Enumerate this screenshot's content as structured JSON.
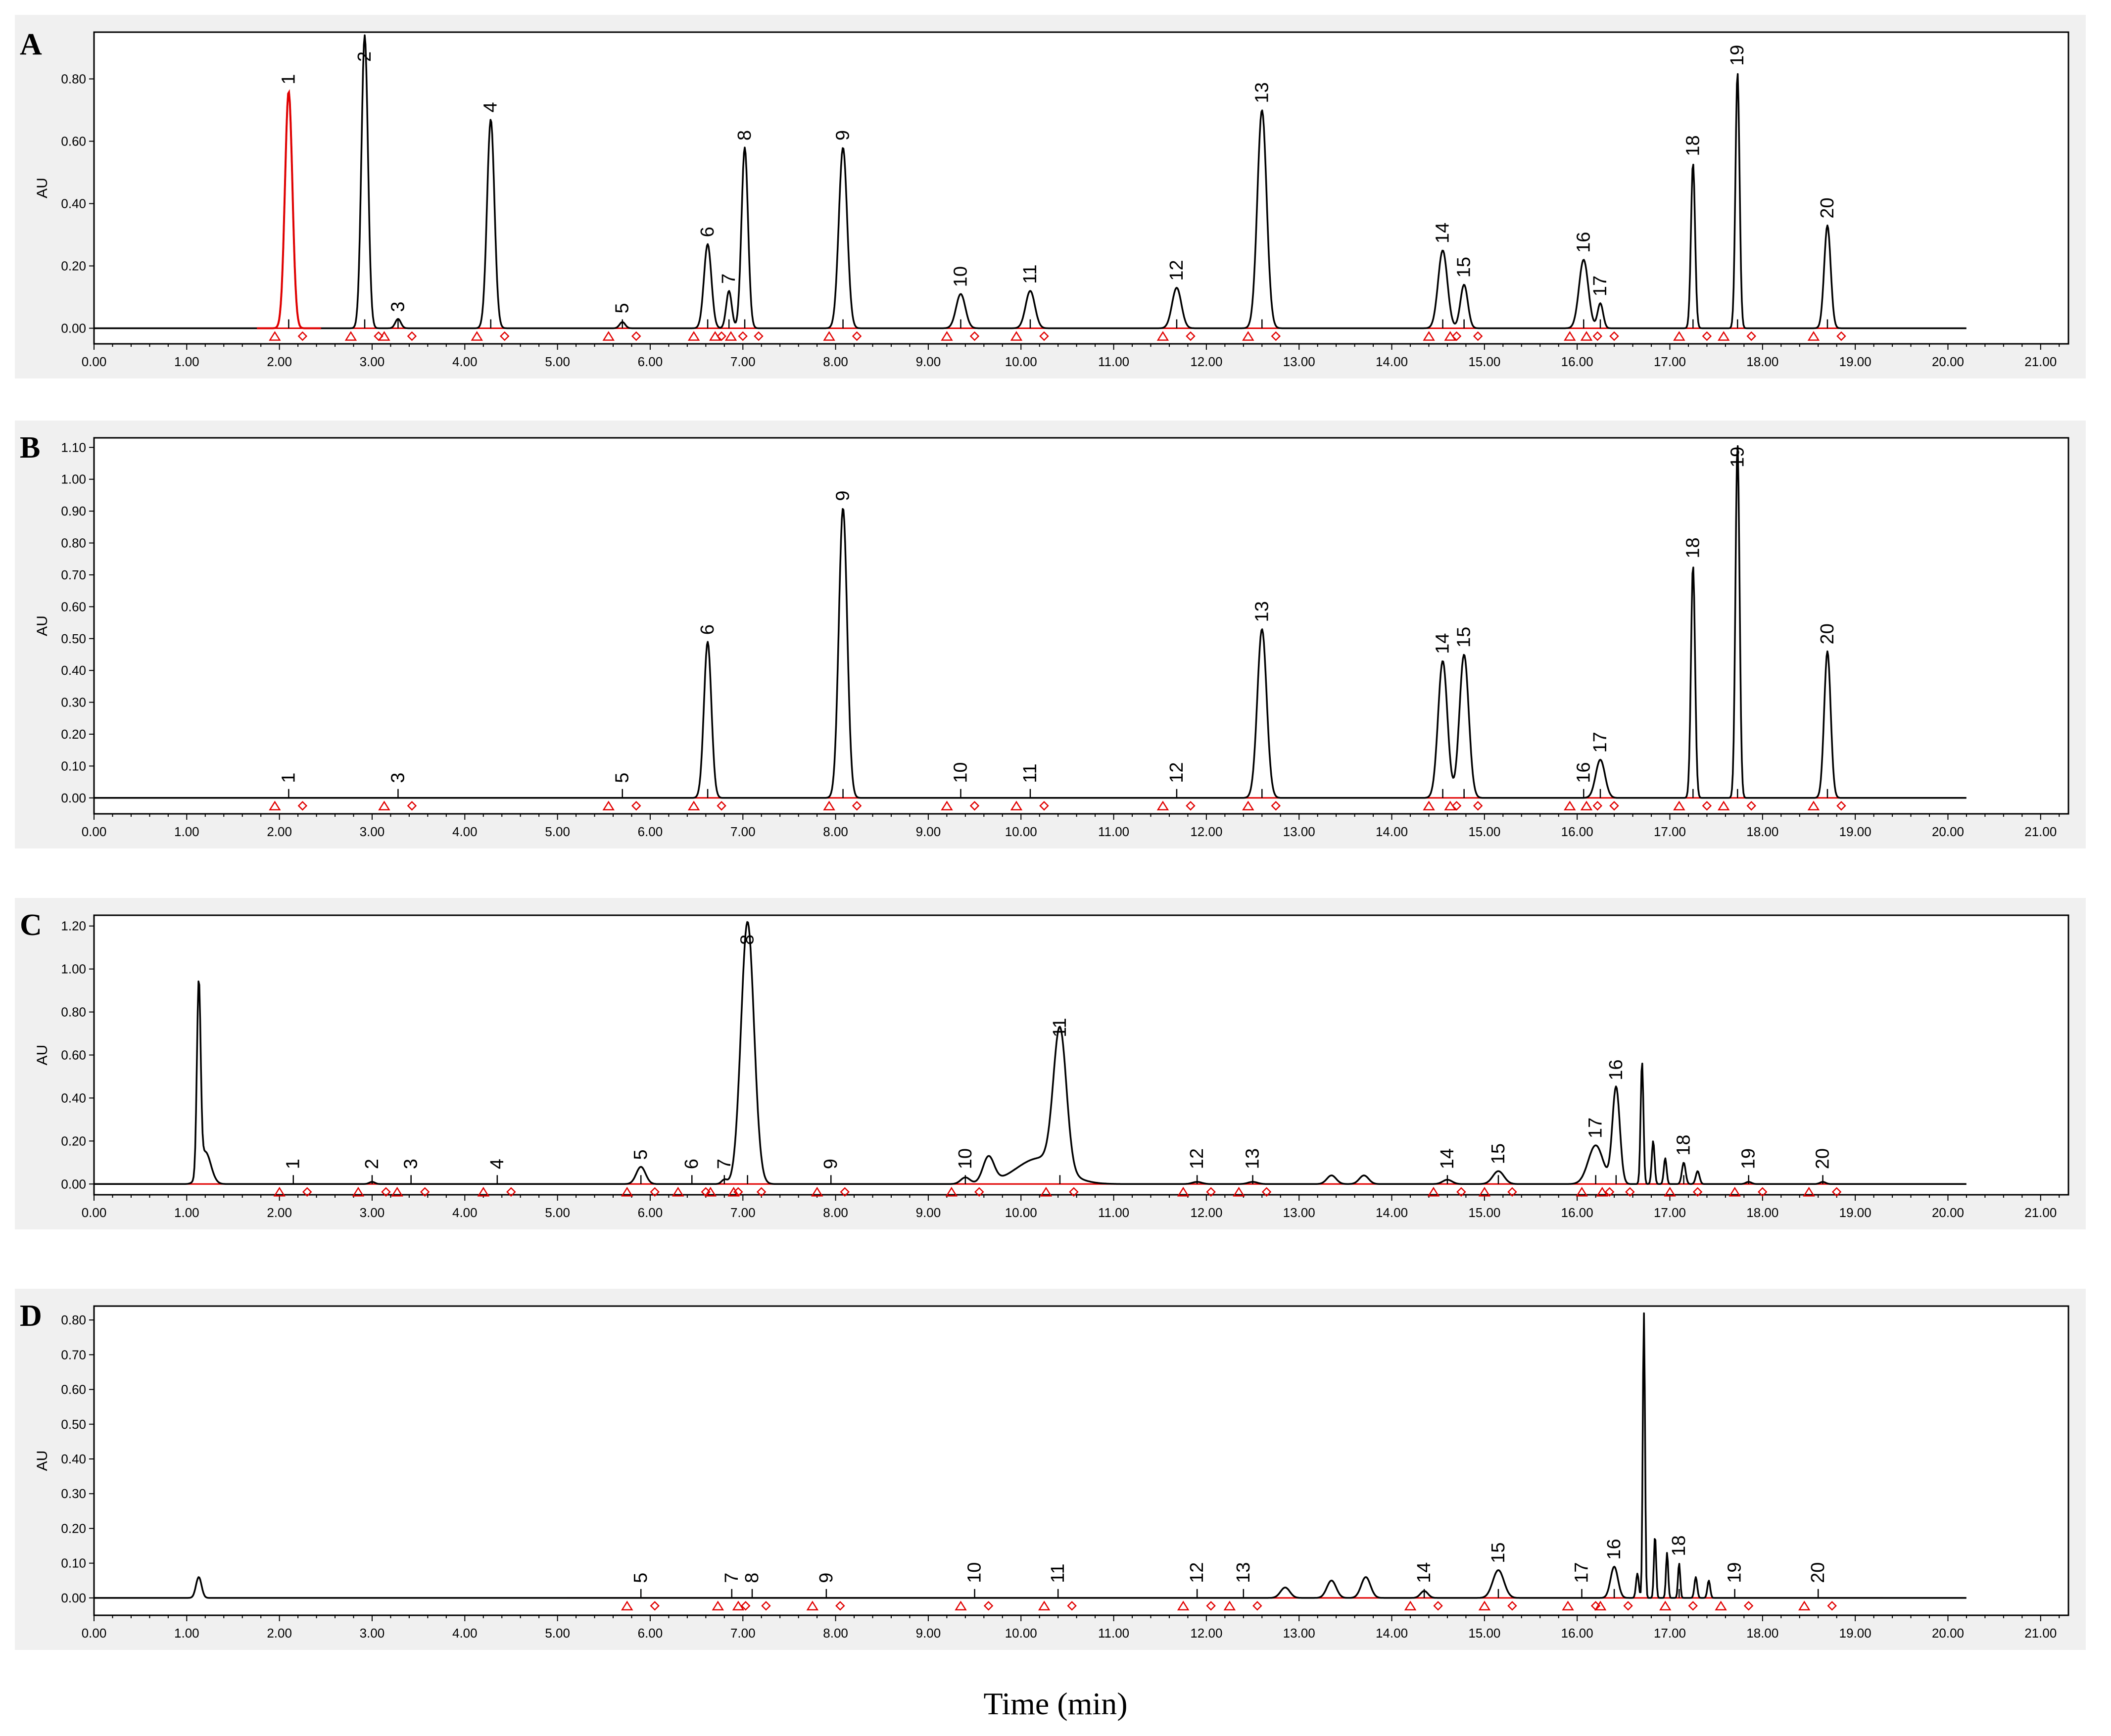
{
  "figure": {
    "xlabel": "Time (min)",
    "colors": {
      "trace": "#000000",
      "highlight": "#e00000",
      "baseline": "#e00000",
      "background": "#f0f0f0"
    }
  },
  "chart_data": [
    {
      "type": "line",
      "panel": "A",
      "ylabel": "AU",
      "xlim": [
        0,
        21.3
      ],
      "ylim": [
        -0.05,
        0.95
      ],
      "x_ticks": [
        "0.00",
        "1.00",
        "2.00",
        "3.00",
        "4.00",
        "5.00",
        "6.00",
        "7.00",
        "8.00",
        "9.00",
        "10.00",
        "11.00",
        "12.00",
        "13.00",
        "14.00",
        "15.00",
        "16.00",
        "17.00",
        "18.00",
        "19.00",
        "20.00",
        "21.00"
      ],
      "y_ticks": [
        0.0,
        0.2,
        0.4,
        0.6,
        0.8
      ],
      "y_tick_labels": [
        "0.00",
        "0.20",
        "0.40",
        "0.60",
        "0.80"
      ],
      "peaks": [
        {
          "label": "1",
          "rt": 2.1,
          "height": 0.76,
          "width": 0.04,
          "highlight": true
        },
        {
          "label": "2",
          "rt": 2.92,
          "height": 0.94,
          "width": 0.035
        },
        {
          "label": "3",
          "rt": 3.28,
          "height": 0.03,
          "width": 0.03
        },
        {
          "label": "4",
          "rt": 4.28,
          "height": 0.67,
          "width": 0.04
        },
        {
          "label": "5",
          "rt": 5.7,
          "height": 0.02,
          "width": 0.03
        },
        {
          "label": "6",
          "rt": 6.62,
          "height": 0.27,
          "width": 0.04
        },
        {
          "label": "7",
          "rt": 6.85,
          "height": 0.12,
          "width": 0.03
        },
        {
          "label": "8",
          "rt": 7.02,
          "height": 0.58,
          "width": 0.035
        },
        {
          "label": "9",
          "rt": 8.08,
          "height": 0.58,
          "width": 0.045
        },
        {
          "label": "10",
          "rt": 9.35,
          "height": 0.11,
          "width": 0.05
        },
        {
          "label": "11",
          "rt": 10.1,
          "height": 0.12,
          "width": 0.05
        },
        {
          "label": "12",
          "rt": 11.68,
          "height": 0.13,
          "width": 0.05
        },
        {
          "label": "13",
          "rt": 12.6,
          "height": 0.7,
          "width": 0.05
        },
        {
          "label": "14",
          "rt": 14.55,
          "height": 0.25,
          "width": 0.05
        },
        {
          "label": "15",
          "rt": 14.78,
          "height": 0.14,
          "width": 0.04
        },
        {
          "label": "16",
          "rt": 16.07,
          "height": 0.22,
          "width": 0.05
        },
        {
          "label": "17",
          "rt": 16.25,
          "height": 0.08,
          "width": 0.03
        },
        {
          "label": "18",
          "rt": 17.25,
          "height": 0.53,
          "width": 0.022
        },
        {
          "label": "19",
          "rt": 17.73,
          "height": 0.82,
          "width": 0.022
        },
        {
          "label": "20",
          "rt": 18.7,
          "height": 0.33,
          "width": 0.035
        }
      ]
    },
    {
      "type": "line",
      "panel": "B",
      "ylabel": "AU",
      "xlim": [
        0,
        21.3
      ],
      "ylim": [
        -0.05,
        1.13
      ],
      "x_ticks": [
        "0.00",
        "1.00",
        "2.00",
        "3.00",
        "4.00",
        "5.00",
        "6.00",
        "7.00",
        "8.00",
        "9.00",
        "10.00",
        "11.00",
        "12.00",
        "13.00",
        "14.00",
        "15.00",
        "16.00",
        "17.00",
        "18.00",
        "19.00",
        "20.00",
        "21.00"
      ],
      "y_ticks": [
        0.0,
        0.1,
        0.2,
        0.3,
        0.4,
        0.5,
        0.6,
        0.7,
        0.8,
        0.9,
        1.0,
        1.1
      ],
      "y_tick_labels": [
        "0.00",
        "0.10",
        "0.20",
        "0.30",
        "0.40",
        "0.50",
        "0.60",
        "0.70",
        "0.80",
        "0.90",
        "1.00",
        "1.10"
      ],
      "peaks": [
        {
          "label": "1",
          "rt": 2.1,
          "height": 0.0,
          "width": 0.03
        },
        {
          "label": "3",
          "rt": 3.28,
          "height": 0.0,
          "width": 0.03
        },
        {
          "label": "5",
          "rt": 5.7,
          "height": 0.0,
          "width": 0.03
        },
        {
          "label": "6",
          "rt": 6.62,
          "height": 0.49,
          "width": 0.04
        },
        {
          "label": "9",
          "rt": 8.08,
          "height": 0.91,
          "width": 0.045
        },
        {
          "label": "10",
          "rt": 9.35,
          "height": 0.0,
          "width": 0.04
        },
        {
          "label": "11",
          "rt": 10.1,
          "height": 0.0,
          "width": 0.04
        },
        {
          "label": "12",
          "rt": 11.68,
          "height": 0.0,
          "width": 0.04
        },
        {
          "label": "13",
          "rt": 12.6,
          "height": 0.53,
          "width": 0.05
        },
        {
          "label": "14",
          "rt": 14.55,
          "height": 0.43,
          "width": 0.05
        },
        {
          "label": "15",
          "rt": 14.78,
          "height": 0.45,
          "width": 0.05
        },
        {
          "label": "16",
          "rt": 16.07,
          "height": 0.0,
          "width": 0.04
        },
        {
          "label": "17",
          "rt": 16.25,
          "height": 0.12,
          "width": 0.05
        },
        {
          "label": "18",
          "rt": 17.25,
          "height": 0.73,
          "width": 0.022
        },
        {
          "label": "19",
          "rt": 17.73,
          "height": 1.11,
          "width": 0.022
        },
        {
          "label": "20",
          "rt": 18.7,
          "height": 0.46,
          "width": 0.035
        }
      ]
    },
    {
      "type": "line",
      "panel": "C",
      "ylabel": "AU",
      "xlim": [
        0,
        21.3
      ],
      "ylim": [
        -0.05,
        1.25
      ],
      "x_ticks": [
        "0.00",
        "1.00",
        "2.00",
        "3.00",
        "4.00",
        "5.00",
        "6.00",
        "7.00",
        "8.00",
        "9.00",
        "10.00",
        "11.00",
        "12.00",
        "13.00",
        "14.00",
        "15.00",
        "16.00",
        "17.00",
        "18.00",
        "19.00",
        "20.00",
        "21.00"
      ],
      "y_ticks": [
        0.0,
        0.2,
        0.4,
        0.6,
        0.8,
        1.0,
        1.2
      ],
      "y_tick_labels": [
        "0.00",
        "0.20",
        "0.40",
        "0.60",
        "0.80",
        "1.00",
        "1.20"
      ],
      "peaks": [
        {
          "label": "",
          "rt": 1.13,
          "height": 0.88,
          "width": 0.02
        },
        {
          "label": "",
          "rt": 1.2,
          "height": 0.15,
          "width": 0.06
        },
        {
          "label": "1",
          "rt": 2.15,
          "height": 0.0,
          "width": 0.03
        },
        {
          "label": "2",
          "rt": 3.0,
          "height": 0.01,
          "width": 0.03
        },
        {
          "label": "3",
          "rt": 3.42,
          "height": 0.0,
          "width": 0.03
        },
        {
          "label": "4",
          "rt": 4.35,
          "height": 0.0,
          "width": 0.03
        },
        {
          "label": "5",
          "rt": 5.9,
          "height": 0.08,
          "width": 0.05
        },
        {
          "label": "6",
          "rt": 6.45,
          "height": 0.0,
          "width": 0.03
        },
        {
          "label": "7",
          "rt": 6.8,
          "height": 0.02,
          "width": 0.03
        },
        {
          "label": "8",
          "rt": 7.05,
          "height": 1.22,
          "width": 0.07
        },
        {
          "label": "9",
          "rt": 7.95,
          "height": 0.0,
          "width": 0.03
        },
        {
          "label": "10",
          "rt": 9.4,
          "height": 0.03,
          "width": 0.05
        },
        {
          "label": "",
          "rt": 9.65,
          "height": 0.12,
          "width": 0.06
        },
        {
          "label": "",
          "rt": 10.2,
          "height": 0.12,
          "width": 0.25
        },
        {
          "label": "11",
          "rt": 10.42,
          "height": 0.65,
          "width": 0.07
        },
        {
          "label": "12",
          "rt": 11.9,
          "height": 0.01,
          "width": 0.05
        },
        {
          "label": "13",
          "rt": 12.5,
          "height": 0.01,
          "width": 0.05
        },
        {
          "label": "",
          "rt": 13.35,
          "height": 0.04,
          "width": 0.05
        },
        {
          "label": "",
          "rt": 13.7,
          "height": 0.04,
          "width": 0.05
        },
        {
          "label": "14",
          "rt": 14.6,
          "height": 0.02,
          "width": 0.05
        },
        {
          "label": "15",
          "rt": 15.15,
          "height": 0.06,
          "width": 0.06
        },
        {
          "label": "17",
          "rt": 16.2,
          "height": 0.18,
          "width": 0.08
        },
        {
          "label": "16",
          "rt": 16.42,
          "height": 0.45,
          "width": 0.04
        },
        {
          "label": "",
          "rt": 16.7,
          "height": 0.57,
          "width": 0.015
        },
        {
          "label": "",
          "rt": 16.82,
          "height": 0.2,
          "width": 0.015
        },
        {
          "label": "",
          "rt": 16.95,
          "height": 0.12,
          "width": 0.015
        },
        {
          "label": "18",
          "rt": 17.15,
          "height": 0.1,
          "width": 0.02
        },
        {
          "label": "",
          "rt": 17.3,
          "height": 0.06,
          "width": 0.02
        },
        {
          "label": "19",
          "rt": 17.85,
          "height": 0.01,
          "width": 0.03
        },
        {
          "label": "20",
          "rt": 18.65,
          "height": 0.01,
          "width": 0.03
        }
      ]
    },
    {
      "type": "line",
      "panel": "D",
      "ylabel": "AU",
      "xlim": [
        0,
        21.3
      ],
      "ylim": [
        -0.05,
        0.84
      ],
      "x_ticks": [
        "0.00",
        "1.00",
        "2.00",
        "3.00",
        "4.00",
        "5.00",
        "6.00",
        "7.00",
        "8.00",
        "9.00",
        "10.00",
        "11.00",
        "12.00",
        "13.00",
        "14.00",
        "15.00",
        "16.00",
        "17.00",
        "18.00",
        "19.00",
        "20.00",
        "21.00"
      ],
      "y_ticks": [
        0.0,
        0.1,
        0.2,
        0.3,
        0.4,
        0.5,
        0.6,
        0.7,
        0.8
      ],
      "y_tick_labels": [
        "0.00",
        "0.10",
        "0.20",
        "0.30",
        "0.40",
        "0.50",
        "0.60",
        "0.70",
        "0.80"
      ],
      "peaks": [
        {
          "label": "",
          "rt": 1.13,
          "height": 0.06,
          "width": 0.03
        },
        {
          "label": "5",
          "rt": 5.9,
          "height": 0.0,
          "width": 0.03
        },
        {
          "label": "7",
          "rt": 6.88,
          "height": 0.0,
          "width": 0.03
        },
        {
          "label": "8",
          "rt": 7.1,
          "height": 0.0,
          "width": 0.03
        },
        {
          "label": "9",
          "rt": 7.9,
          "height": 0.0,
          "width": 0.03
        },
        {
          "label": "10",
          "rt": 9.5,
          "height": 0.0,
          "width": 0.03
        },
        {
          "label": "11",
          "rt": 10.4,
          "height": 0.0,
          "width": 0.03
        },
        {
          "label": "12",
          "rt": 11.9,
          "height": 0.0,
          "width": 0.03
        },
        {
          "label": "13",
          "rt": 12.4,
          "height": 0.0,
          "width": 0.03
        },
        {
          "label": "",
          "rt": 12.85,
          "height": 0.03,
          "width": 0.05
        },
        {
          "label": "",
          "rt": 13.35,
          "height": 0.05,
          "width": 0.05
        },
        {
          "label": "",
          "rt": 13.72,
          "height": 0.06,
          "width": 0.05
        },
        {
          "label": "14",
          "rt": 14.35,
          "height": 0.02,
          "width": 0.04
        },
        {
          "label": "15",
          "rt": 15.15,
          "height": 0.08,
          "width": 0.06
        },
        {
          "label": "17",
          "rt": 16.05,
          "height": 0.0,
          "width": 0.03
        },
        {
          "label": "16",
          "rt": 16.4,
          "height": 0.09,
          "width": 0.04
        },
        {
          "label": "",
          "rt": 16.65,
          "height": 0.07,
          "width": 0.015
        },
        {
          "label": "",
          "rt": 16.72,
          "height": 0.82,
          "width": 0.012
        },
        {
          "label": "",
          "rt": 16.84,
          "height": 0.18,
          "width": 0.012
        },
        {
          "label": "",
          "rt": 16.97,
          "height": 0.13,
          "width": 0.012
        },
        {
          "label": "18",
          "rt": 17.1,
          "height": 0.1,
          "width": 0.012
        },
        {
          "label": "",
          "rt": 17.28,
          "height": 0.06,
          "width": 0.015
        },
        {
          "label": "",
          "rt": 17.42,
          "height": 0.05,
          "width": 0.015
        },
        {
          "label": "19",
          "rt": 17.7,
          "height": 0.0,
          "width": 0.03
        },
        {
          "label": "20",
          "rt": 18.6,
          "height": 0.0,
          "width": 0.03
        }
      ]
    }
  ]
}
